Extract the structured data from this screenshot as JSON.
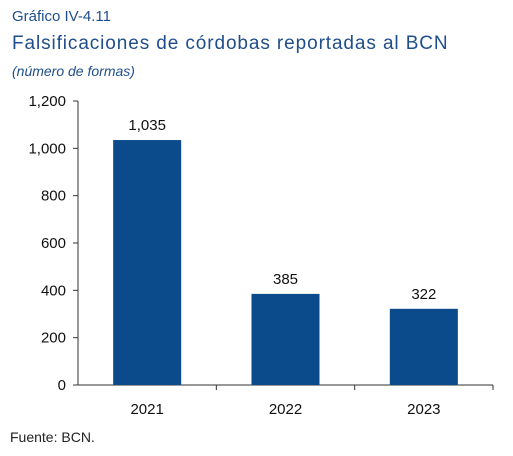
{
  "header": {
    "kicker": "Gráfico IV-4.11",
    "title": "Falsificaciones de córdobas reportadas al BCN",
    "subtitle": "(número de formas)"
  },
  "footer": {
    "source": "Fuente: BCN."
  },
  "colors": {
    "bar": "#0b4a8b",
    "text": "#1f4e8c",
    "axis": "#333333"
  },
  "chart_data": {
    "type": "bar",
    "title": "Falsificaciones de córdobas reportadas al BCN",
    "subtitle": "(número de formas)",
    "xlabel": "",
    "ylabel": "",
    "categories": [
      "2021",
      "2022",
      "2023"
    ],
    "values": [
      1035,
      385,
      322
    ],
    "data_labels": [
      "1,035",
      "385",
      "322"
    ],
    "ylim": [
      0,
      1200
    ],
    "yticks": [
      0,
      200,
      400,
      600,
      800,
      1000,
      1200
    ],
    "ytick_labels": [
      "0",
      "200",
      "400",
      "600",
      "800",
      "1,000",
      "1,200"
    ],
    "grid": false,
    "legend": "none"
  }
}
